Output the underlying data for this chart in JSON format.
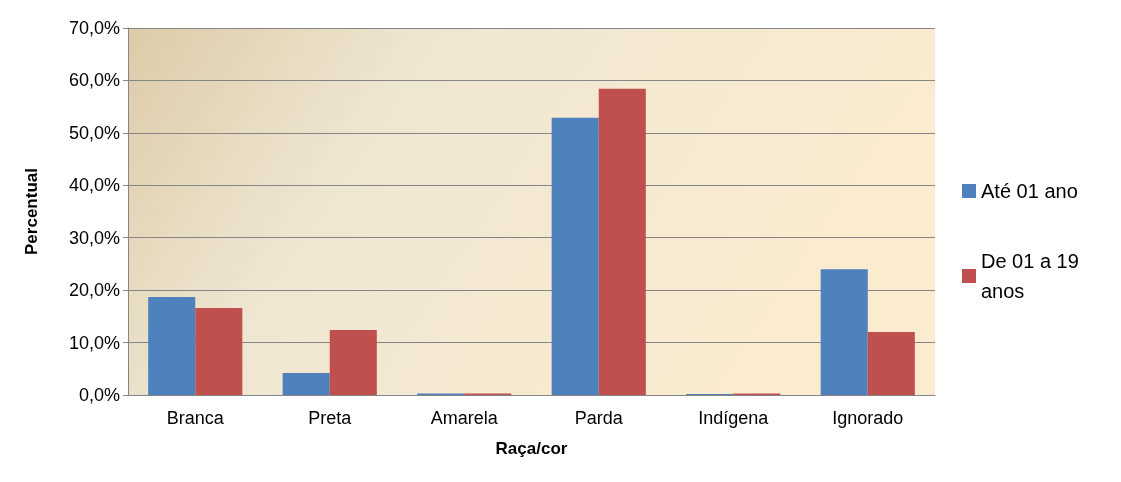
{
  "chart_data": {
    "type": "bar",
    "xlabel": "Raça/cor",
    "ylabel": "Percentual",
    "categories": [
      "Branca",
      "Preta",
      "Amarela",
      "Parda",
      "Indígena",
      "Ignorado"
    ],
    "series": [
      {
        "name": "Até 01 ano",
        "color": "#4f81bd",
        "values": [
          18.7,
          4.2,
          0.3,
          52.9,
          0.2,
          24.0
        ]
      },
      {
        "name": "De 01 a 19 anos",
        "color": "#c0504d",
        "values": [
          16.6,
          12.4,
          0.3,
          58.4,
          0.3,
          12.0
        ]
      }
    ],
    "ylim": [
      0,
      70
    ],
    "yticks": [
      {
        "value": 0,
        "label": "0,0%"
      },
      {
        "value": 10,
        "label": "10,0%"
      },
      {
        "value": 20,
        "label": "20,0%"
      },
      {
        "value": 30,
        "label": "30,0%"
      },
      {
        "value": 40,
        "label": "40,0%"
      },
      {
        "value": 50,
        "label": "50,0%"
      },
      {
        "value": 60,
        "label": "60,0%"
      },
      {
        "value": 70,
        "label": "70,0%"
      }
    ],
    "grid": "y",
    "legend": "right"
  }
}
